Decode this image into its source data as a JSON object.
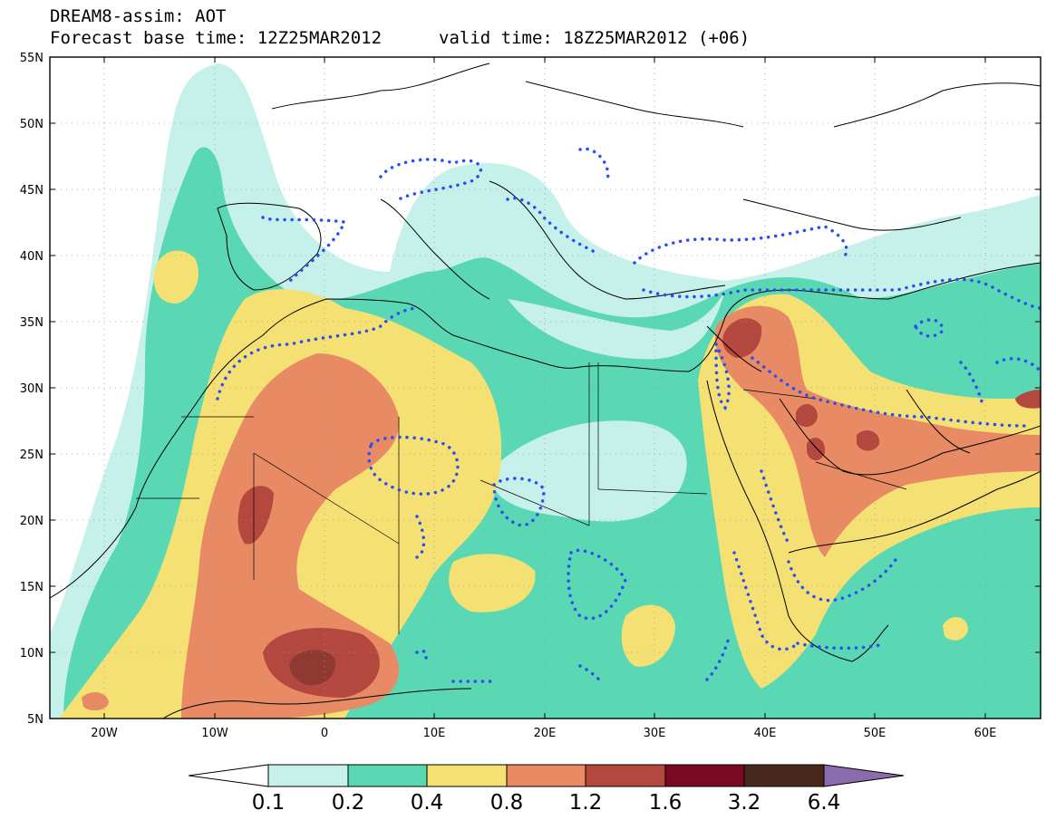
{
  "title": {
    "line1": "DREAM8-assim: AOT",
    "base_time": "Forecast base time: 12Z25MAR2012",
    "valid_time": "valid time: 18Z25MAR2012 (+06)"
  },
  "map": {
    "lon_range": [
      -25,
      65
    ],
    "lat_range": [
      5,
      55
    ],
    "lat_labels": [
      "55N",
      "50N",
      "45N",
      "40N",
      "35N",
      "30N",
      "25N",
      "20N",
      "15N",
      "10N",
      "5N"
    ],
    "lon_labels": [
      "20W",
      "10W",
      "0",
      "10E",
      "20E",
      "30E",
      "40E",
      "50E",
      "60E"
    ],
    "grid": true
  },
  "colorbar": {
    "labels": [
      "0.1",
      "0.2",
      "0.4",
      "0.8",
      "1.2",
      "1.6",
      "3.2",
      "6.4"
    ],
    "colors": [
      "#ffffff",
      "#c6f0ea",
      "#5ad8b4",
      "#f5e173",
      "#e88a64",
      "#b4483e",
      "#7a0822",
      "#47281a",
      "#8a6cae"
    ]
  },
  "shading_colors": {
    "c1": "#c6f0ea",
    "c2": "#5ad8b4",
    "c3": "#f5e173",
    "c4": "#e88a64",
    "c5": "#b4483e",
    "c6": "#8e3a33"
  },
  "dust_contour_color": "#2a4ff0"
}
